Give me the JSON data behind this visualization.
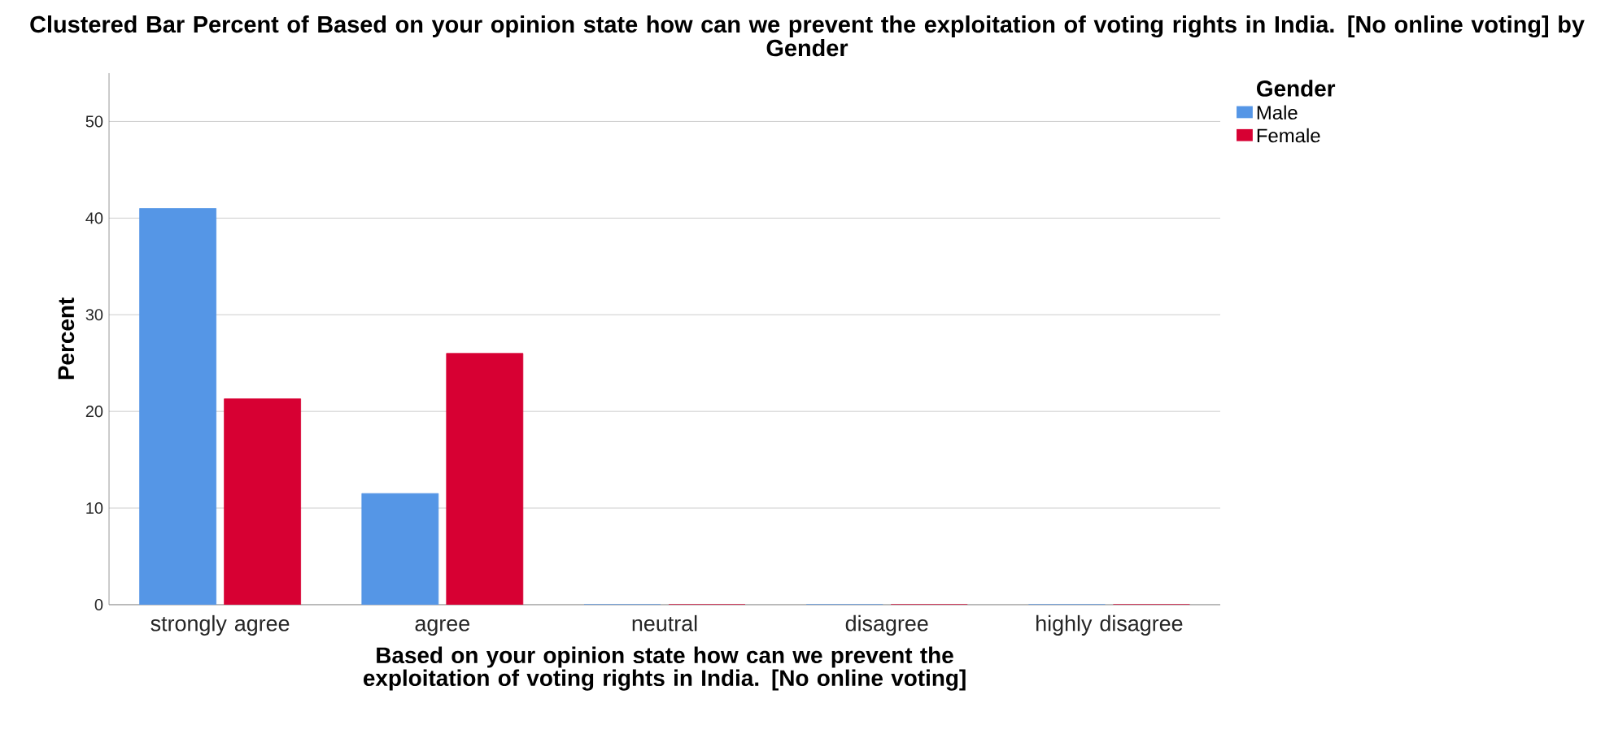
{
  "chart_data": {
    "type": "bar",
    "title": "Clustered Bar Percent of Based on your opinion state how can we prevent the exploitation of voting rights in India. [No online voting] by Gender",
    "xlabel": "Based on your opinion state how can we prevent the exploitation of voting rights in India. [No online voting]",
    "ylabel": "Percent",
    "categories": [
      "strongly agree",
      "agree",
      "neutral",
      "disagree",
      "highly disagree"
    ],
    "series": [
      {
        "name": "Male",
        "color": "#5596e6",
        "values": [
          41.0,
          11.5,
          0,
          0,
          0
        ]
      },
      {
        "name": "Female",
        "color": "#d70033",
        "values": [
          21.3,
          26.0,
          0,
          0,
          0
        ]
      }
    ],
    "ylim": [
      0,
      55
    ],
    "yticks": [
      0,
      10,
      20,
      30,
      40,
      50
    ],
    "grid": "y",
    "legend": "top right",
    "legend_title": "Gender"
  }
}
